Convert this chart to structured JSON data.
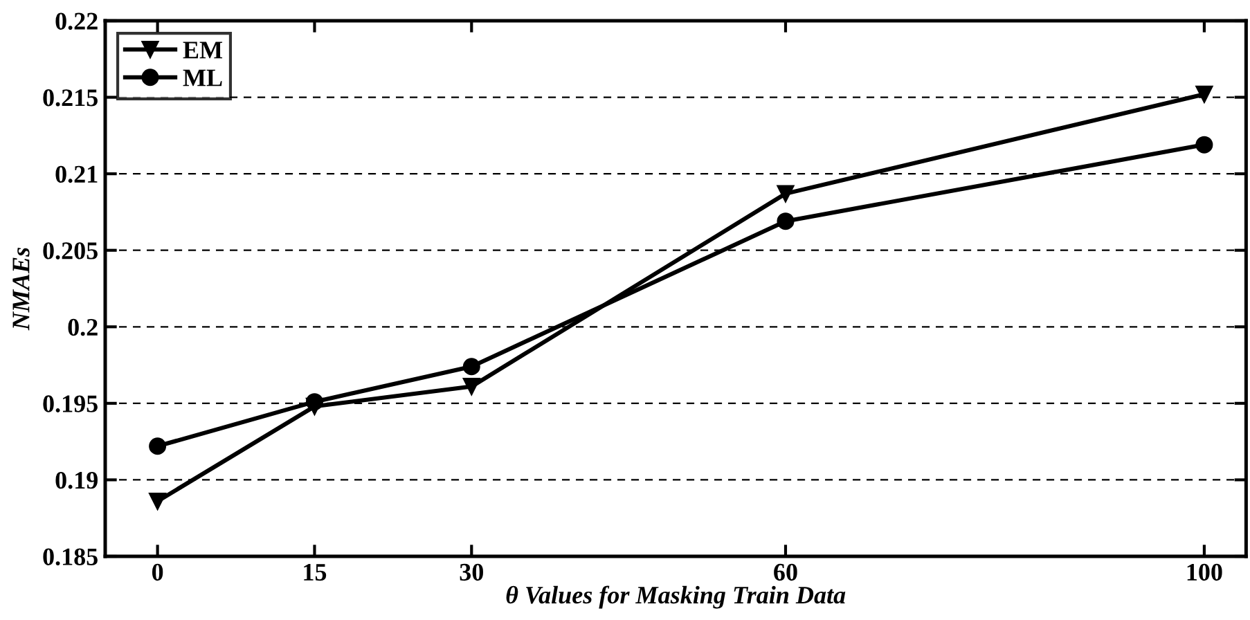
{
  "chart_data": {
    "type": "line",
    "xlabel": "θ Values for Masking Train Data",
    "ylabel": "NMAEs",
    "x": [
      0,
      15,
      30,
      60,
      100
    ],
    "series": [
      {
        "name": "EM",
        "color": "#000000",
        "marker": "triangle",
        "values": [
          0.1886,
          0.1948,
          0.1961,
          0.2087,
          0.2152
        ]
      },
      {
        "name": "ML",
        "color": "#000000",
        "marker": "circle",
        "values": [
          0.1922,
          0.1951,
          0.1974,
          0.2069,
          0.2119
        ]
      }
    ],
    "xlim": [
      -5,
      104
    ],
    "xticks": [
      0,
      15,
      30,
      60,
      100
    ],
    "ylim": [
      0.185,
      0.22
    ],
    "yticks": [
      0.185,
      0.19,
      0.195,
      0.2,
      0.205,
      0.21,
      0.215,
      0.22
    ],
    "grid": "y",
    "legend": "top left",
    "line_style": "solid"
  }
}
